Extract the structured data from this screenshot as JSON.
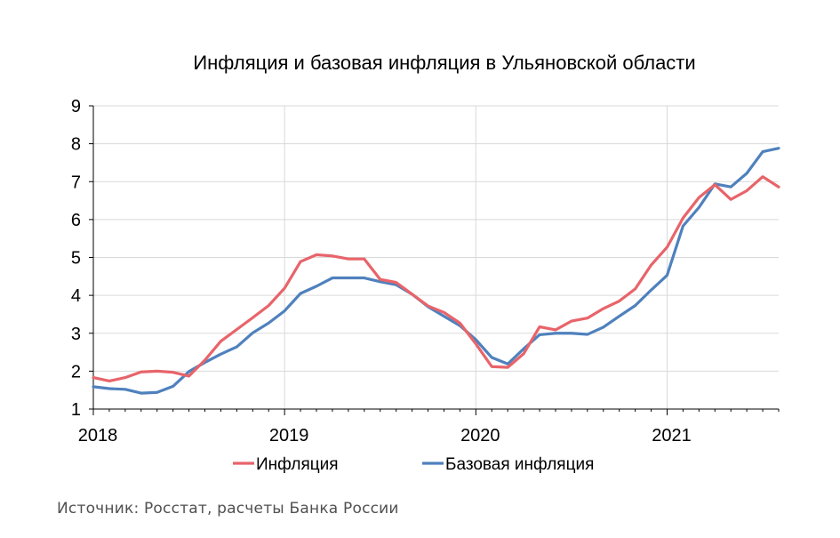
{
  "source_text": "Источник: Росстат, расчеты Банка России",
  "chart_data": {
    "type": "line",
    "title": "Инфляция и базовая инфляция в Ульяновской области",
    "xlabel": "",
    "ylabel": "",
    "ylim": [
      1,
      9
    ],
    "yticks": [
      "1",
      "2",
      "3",
      "4",
      "5",
      "6",
      "7",
      "8",
      "9"
    ],
    "xticks": [
      "2018",
      "2019",
      "2020",
      "2021"
    ],
    "x_start": "2018-01",
    "x_end": "2021-08",
    "grid": {
      "horizontal": true,
      "vertical": true
    },
    "legend_position": "bottom",
    "series": [
      {
        "name": "Инфляция",
        "color": "#e8646a",
        "values": [
          1.83,
          1.74,
          1.83,
          1.98,
          2.0,
          1.97,
          1.87,
          2.29,
          2.79,
          3.1,
          3.41,
          3.73,
          4.19,
          4.89,
          5.07,
          5.04,
          4.96,
          4.96,
          4.42,
          4.34,
          4.03,
          3.72,
          3.55,
          3.27,
          2.72,
          2.12,
          2.1,
          2.46,
          3.17,
          3.09,
          3.32,
          3.4,
          3.65,
          3.85,
          4.17,
          4.8,
          5.27,
          6.04,
          6.58,
          6.92,
          6.53,
          6.76,
          7.13,
          6.86
        ]
      },
      {
        "name": "Базовая инфляция",
        "color": "#4f81bd",
        "values": [
          1.59,
          1.54,
          1.52,
          1.42,
          1.44,
          1.6,
          1.99,
          2.23,
          2.45,
          2.64,
          3.01,
          3.27,
          3.59,
          4.05,
          4.24,
          4.46,
          4.46,
          4.46,
          4.36,
          4.28,
          4.03,
          3.7,
          3.45,
          3.2,
          2.83,
          2.36,
          2.19,
          2.59,
          2.96,
          3.0,
          3.0,
          2.97,
          3.16,
          3.45,
          3.73,
          4.14,
          4.53,
          5.83,
          6.32,
          6.94,
          6.86,
          7.22,
          7.79,
          7.88
        ]
      }
    ]
  }
}
